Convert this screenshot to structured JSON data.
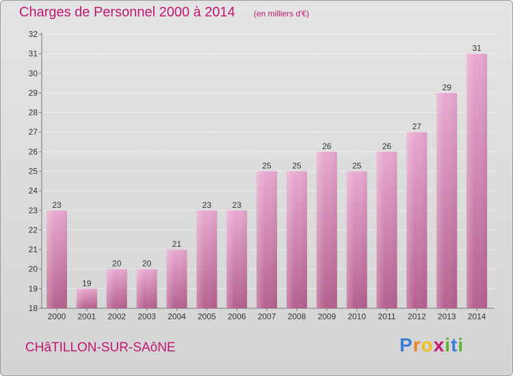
{
  "header": {
    "title": "Charges de Personnel 2000 à 2014",
    "subtitle": "(en milliers d'€)"
  },
  "footer": {
    "location": "CHâTILLON-SUR-SAôNE",
    "logo_text": "Proxiti",
    "logo_letters": [
      "P",
      "r",
      "o",
      "x",
      "i",
      "t",
      "i"
    ],
    "logo_colors": [
      "#3a7fd5",
      "#e8832a",
      "#f0c21b",
      "#c0176f",
      "#5fb13a",
      "#3a7fd5",
      "#5fb13a"
    ]
  },
  "chart_data": {
    "type": "bar",
    "title": "Charges de Personnel 2000 à 2014",
    "subtitle": "(en milliers d'€)",
    "categories": [
      "2000",
      "2001",
      "2002",
      "2003",
      "2004",
      "2005",
      "2006",
      "2007",
      "2008",
      "2009",
      "2010",
      "2011",
      "2012",
      "2013",
      "2014"
    ],
    "values": [
      23,
      19,
      20,
      20,
      21,
      23,
      23,
      25,
      25,
      26,
      25,
      26,
      27,
      29,
      31
    ],
    "ylim": [
      18,
      32
    ],
    "yticks": [
      "18",
      "19",
      "20",
      "21",
      "22",
      "23",
      "24",
      "25",
      "26",
      "27",
      "28",
      "29",
      "30",
      "31",
      "32"
    ],
    "grid": true,
    "bar_color_top": "#e8a9d0",
    "bar_color_bottom": "#b5618f",
    "grid_color": "#ffffff"
  }
}
